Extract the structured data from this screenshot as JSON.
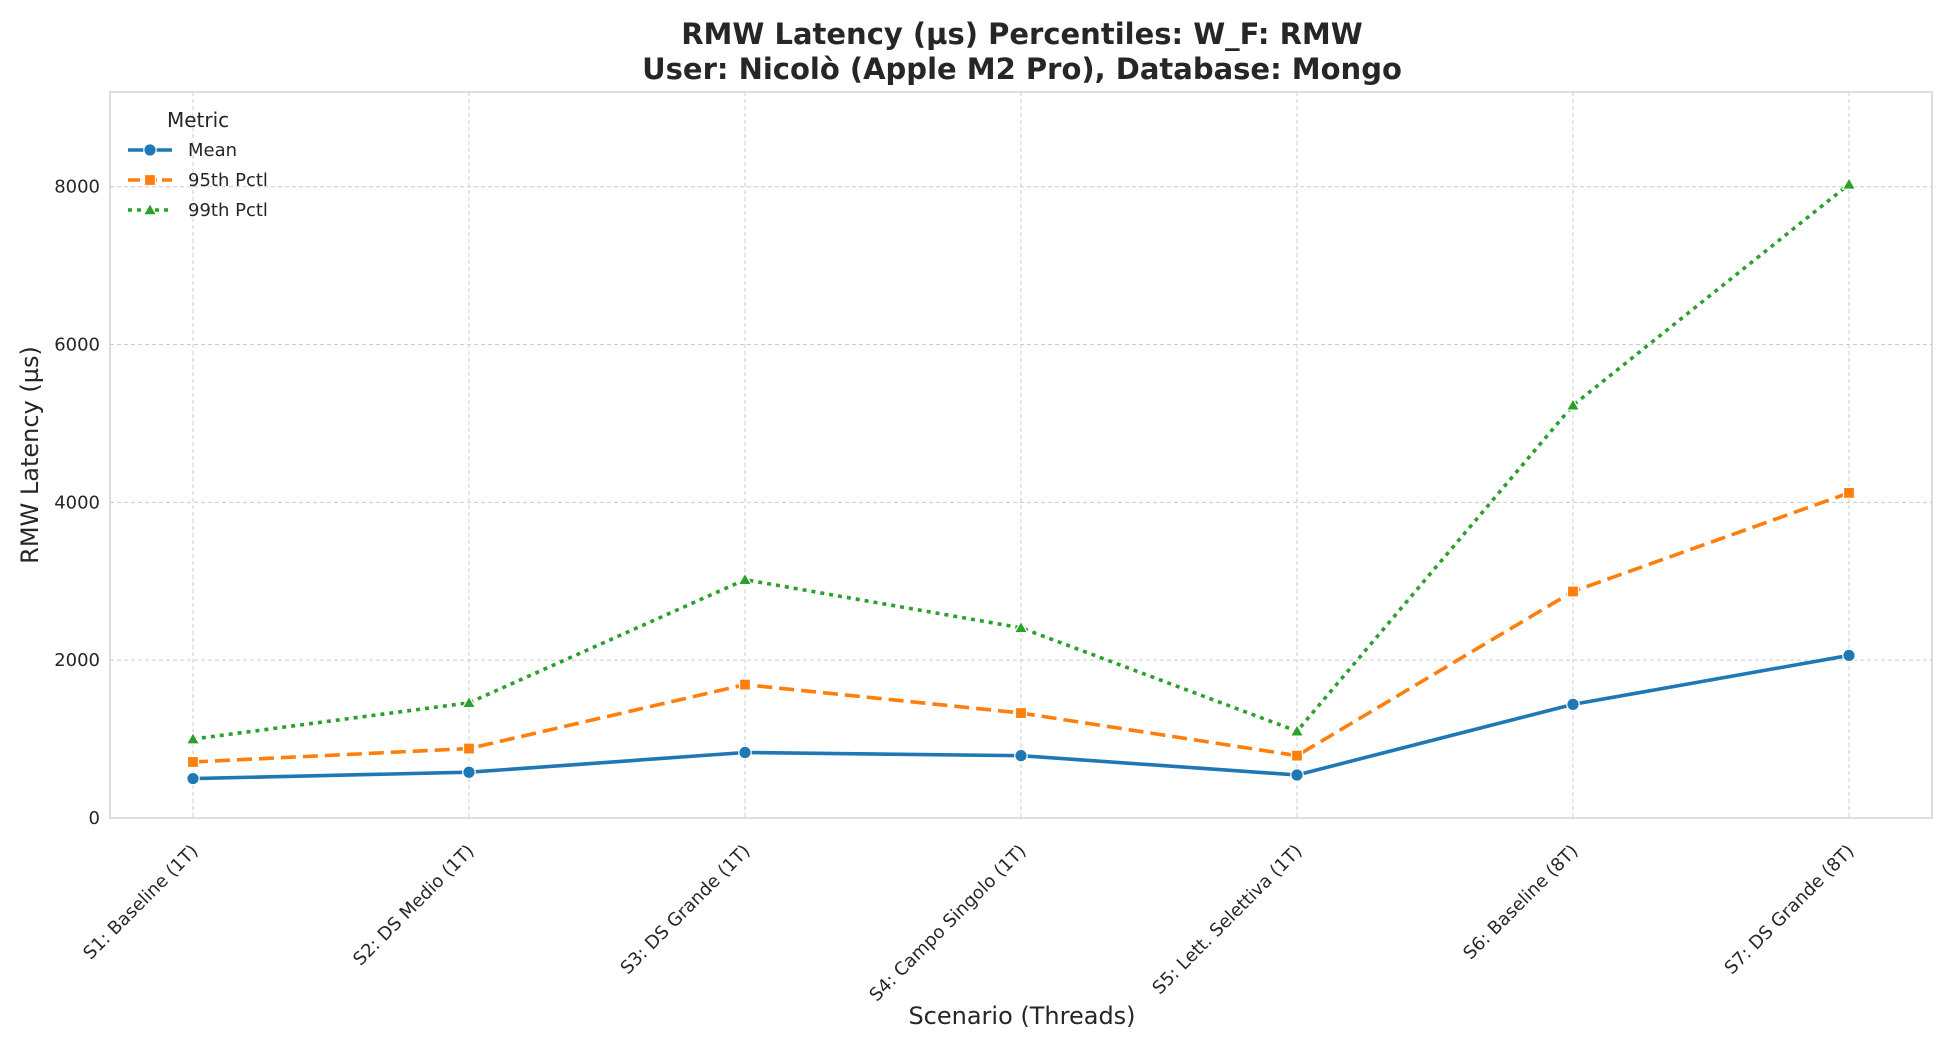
{
  "chart_data": {
    "type": "line",
    "title": "RMW Latency (µs) Percentiles: W_F: RMW",
    "subtitle": "User: Nicolò (Apple M2 Pro), Database: Mongo",
    "xlabel": "Scenario (Threads)",
    "ylabel": "RMW Latency (µs)",
    "ylim": [
      0,
      9200
    ],
    "yticks": [
      0,
      2000,
      4000,
      6000,
      8000
    ],
    "grid": true,
    "legend": {
      "title": "Metric",
      "placement": "top-left"
    },
    "categories": [
      "S1: Baseline (1T)",
      "S2: DS Medio (1T)",
      "S3: DS Grande (1T)",
      "S4: Campo Singolo (1T)",
      "S5: Lett. Selettiva (1T)",
      "S6: Baseline (8T)",
      "S7: DS Grande (8T)"
    ],
    "series": [
      {
        "name": "Mean",
        "color": "#1f77b4",
        "marker": "circle",
        "line_style": "solid",
        "values": [
          500,
          580,
          830,
          790,
          545,
          1440,
          2060
        ]
      },
      {
        "name": "95th Pctl",
        "color": "#ff7f0e",
        "marker": "square",
        "line_style": "dashed",
        "values": [
          710,
          880,
          1690,
          1330,
          790,
          2870,
          4120
        ]
      },
      {
        "name": "99th Pctl",
        "color": "#2ca02c",
        "marker": "triangle",
        "line_style": "dotted",
        "values": [
          1000,
          1460,
          3020,
          2410,
          1100,
          5230,
          8030
        ]
      }
    ]
  }
}
